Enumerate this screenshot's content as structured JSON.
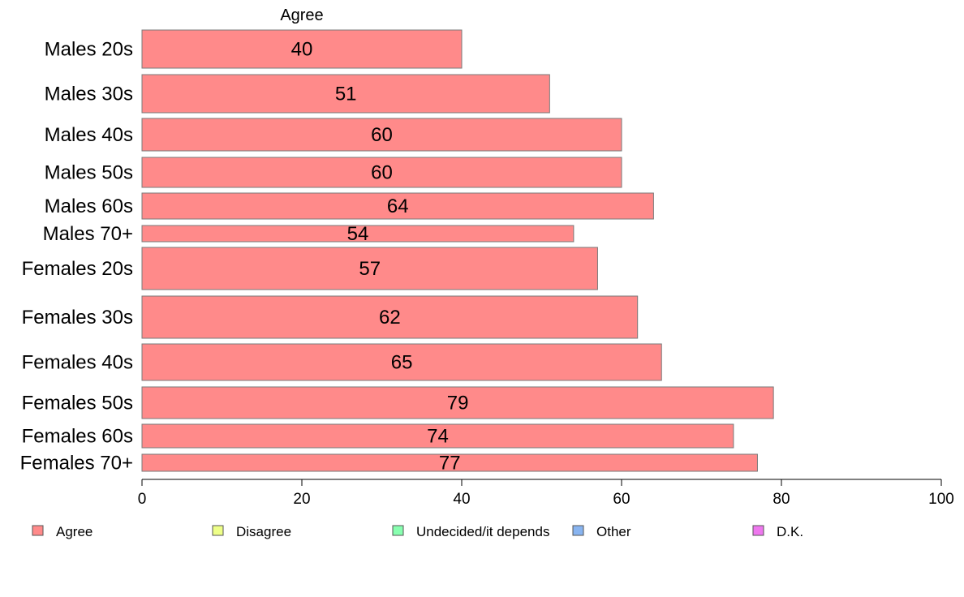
{
  "chart_data": {
    "type": "bar",
    "orientation": "horizontal",
    "series_title": "Agree",
    "categories": [
      "Males 20s",
      "Males 30s",
      "Males 40s",
      "Males 50s",
      "Males 60s",
      "Males 70+",
      "Females 20s",
      "Females 30s",
      "Females 40s",
      "Females 50s",
      "Females 60s",
      "Females 70+"
    ],
    "series": [
      {
        "name": "Agree",
        "values": [
          40,
          51,
          60,
          60,
          64,
          54,
          57,
          62,
          65,
          79,
          74,
          77
        ]
      }
    ],
    "value_labels": [
      "40",
      "51",
      "60",
      "60",
      "64",
      "54",
      "57",
      "62",
      "65",
      "79",
      "74",
      "77"
    ],
    "xlim": [
      0,
      100
    ],
    "xticks": [
      0,
      20,
      40,
      60,
      80,
      100
    ],
    "xtick_labels": [
      "0",
      "20",
      "40",
      "60",
      "80",
      "100"
    ],
    "grid": false,
    "legend": {
      "placement": "bottom",
      "entries": [
        {
          "label": "Agree",
          "color": "#ff8a8a"
        },
        {
          "label": "Disagree",
          "color": "#eeff88"
        },
        {
          "label": "Undecided/it depends",
          "color": "#88ffb0"
        },
        {
          "label": "Other",
          "color": "#88b4f0"
        },
        {
          "label": "D.K.",
          "color": "#ee77ee"
        }
      ]
    },
    "bar_color": "#ff8a8a"
  }
}
